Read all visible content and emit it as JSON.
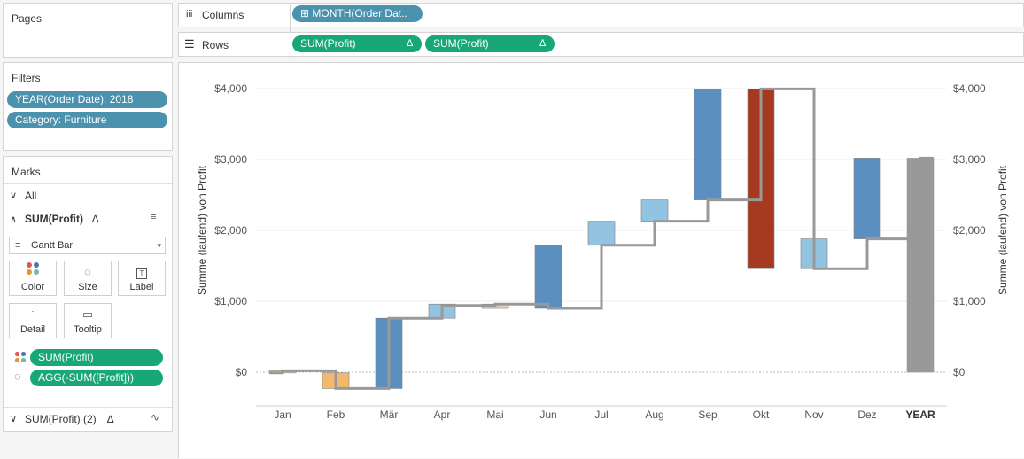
{
  "pages": {
    "title": "Pages"
  },
  "columns": {
    "label": "Columns",
    "pill": "MONTH(Order Dat..",
    "pill_prefix": "⊞"
  },
  "rows": {
    "label": "Rows",
    "pills": [
      "SUM(Profit)",
      "SUM(Profit)"
    ],
    "delta": "∆"
  },
  "filters": {
    "title": "Filters",
    "items": [
      "YEAR(Order Date): 2018",
      "Category: Furniture"
    ]
  },
  "marks": {
    "title": "Marks",
    "all_label": "All",
    "card_title": "SUM(Profit)",
    "card_title2": "SUM(Profit) (2)",
    "delta": "∆",
    "mark_type": "Gantt Bar",
    "buttons": [
      "Color",
      "Size",
      "Label",
      "Detail",
      "Tooltip"
    ],
    "fields": [
      "SUM(Profit)",
      "AGG(-SUM([Profit]))"
    ]
  },
  "colors": {
    "blue_pill": "#4a92ad",
    "green_pill": "#18a878",
    "up_dark": "#5b8fc0",
    "up_light": "#92c3e0",
    "down_orange": "#f5b96d",
    "down_tan": "#efd3a8",
    "oct_red": "#a53a20",
    "total_gray": "#999999",
    "step_line": "#999999"
  },
  "chart_data": {
    "type": "bar",
    "subtype": "waterfall-gantt",
    "categories": [
      "Jan",
      "Feb",
      "Mär",
      "Apr",
      "Mai",
      "Jun",
      "Jul",
      "Aug",
      "Sep",
      "Okt",
      "Nov",
      "Dez",
      "YEAR"
    ],
    "start": [
      -10,
      20,
      760,
      940,
      960,
      900,
      1790,
      2130,
      2430,
      3995,
      1460,
      1880,
      0
    ],
    "end": [
      20,
      -230,
      -230,
      760,
      940,
      960,
      900,
      1790,
      2130,
      2430,
      1460,
      1880,
      3020
    ],
    "running_total": [
      20,
      -230,
      760,
      940,
      960,
      900,
      1790,
      2130,
      2430,
      3995,
      1460,
      1880,
      3020
    ],
    "bar_top": [
      20,
      -10,
      760,
      960,
      960,
      1790,
      2130,
      2430,
      3995,
      3995,
      1880,
      3020,
      3020
    ],
    "bar_bottom": [
      -10,
      -230,
      -230,
      760,
      900,
      900,
      1790,
      2130,
      2430,
      1460,
      1460,
      1880,
      0
    ],
    "bar_color": [
      "#efd3a8",
      "#f5b96d",
      "#5b8fc0",
      "#92c3e0",
      "#efd3a8",
      "#5b8fc0",
      "#92c3e0",
      "#92c3e0",
      "#5b8fc0",
      "#a53a20",
      "#92c3e0",
      "#5b8fc0",
      "#999999"
    ],
    "yticks": [
      "$4,000",
      "$3,000",
      "$2,000",
      "$1,000",
      "$0"
    ],
    "ytick_values": [
      4000,
      3000,
      2000,
      1000,
      0
    ],
    "ylabel": "Summe (laufend) von Profit",
    "ylim": [
      -450,
      4150
    ],
    "grid": true
  }
}
